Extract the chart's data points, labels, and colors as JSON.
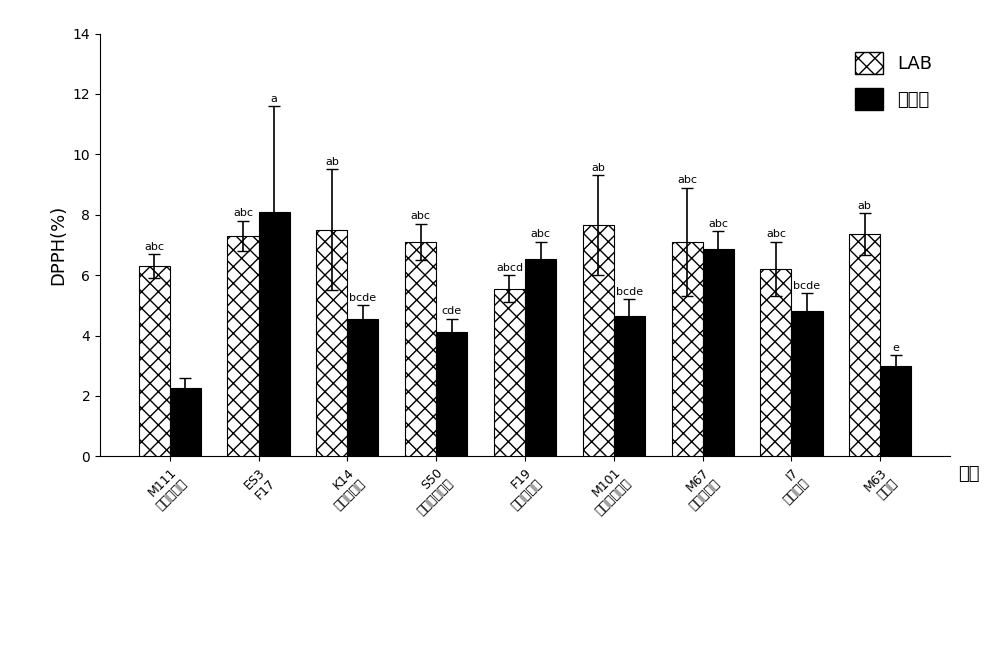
{
  "groups": [
    {
      "label_line1": "M111",
      "label_line2": "植物乳杆菌",
      "lab": 6.3,
      "lab_err": 0.4,
      "ref": 2.25,
      "ref_err": 0.35,
      "lab_letter": "abc",
      "ref_letter": ""
    },
    {
      "label_line1": "ES3",
      "label_line2": "F17",
      "lab": 7.3,
      "lab_err": 0.5,
      "ref": 8.1,
      "ref_err": 3.5,
      "lab_letter": "abc",
      "ref_letter": "a"
    },
    {
      "label_line1": "K14",
      "label_line2": "瑞士乳杆菌",
      "lab": 7.5,
      "lab_err": 2.0,
      "ref": 4.55,
      "ref_err": 0.45,
      "lab_letter": "ab",
      "ref_letter": "bcde"
    },
    {
      "label_line1": "S50",
      "label_line2": "副干酪乳杆菌",
      "lab": 7.1,
      "lab_err": 0.6,
      "ref": 4.1,
      "ref_err": 0.45,
      "lab_letter": "abc",
      "ref_letter": "cde"
    },
    {
      "label_line1": "F19",
      "label_line2": "嗜热链球菌",
      "lab": 5.55,
      "lab_err": 0.45,
      "ref": 6.55,
      "ref_err": 0.55,
      "lab_letter": "abcd",
      "ref_letter": "abc"
    },
    {
      "label_line1": "M101",
      "label_line2": "肠膜明串球菌",
      "lab": 7.65,
      "lab_err": 1.65,
      "ref": 4.65,
      "ref_err": 0.55,
      "lab_letter": "ab",
      "ref_letter": "bcde"
    },
    {
      "label_line1": "M67",
      "label_line2": "耐久肠球菌",
      "lab": 7.1,
      "lab_err": 1.8,
      "ref": 6.85,
      "ref_err": 0.6,
      "lab_letter": "abc",
      "ref_letter": "abc"
    },
    {
      "label_line1": "I7",
      "label_line2": "屎肠球菌",
      "lab": 6.2,
      "lab_err": 0.9,
      "ref": 4.8,
      "ref_err": 0.6,
      "lab_letter": "abc",
      "ref_letter": "bcde"
    },
    {
      "label_line1": "M63",
      "label_line2": "乳球菌",
      "lab": 7.35,
      "lab_err": 0.7,
      "ref": 3.0,
      "ref_err": 0.35,
      "lab_letter": "ab",
      "ref_letter": "e"
    }
  ],
  "ylabel": "DPPH(%)",
  "xlabel": "菌种",
  "ylim": [
    0,
    14
  ],
  "yticks": [
    0,
    2,
    4,
    6,
    8,
    10,
    12,
    14
  ],
  "legend_lab": "LAB",
  "legend_ref": "参考菌",
  "bar_width": 0.35,
  "lab_hatch": "xx",
  "ref_hatch": "....",
  "lab_color": "white",
  "ref_color": "black",
  "figsize": [
    10,
    6.71
  ],
  "dpi": 100
}
